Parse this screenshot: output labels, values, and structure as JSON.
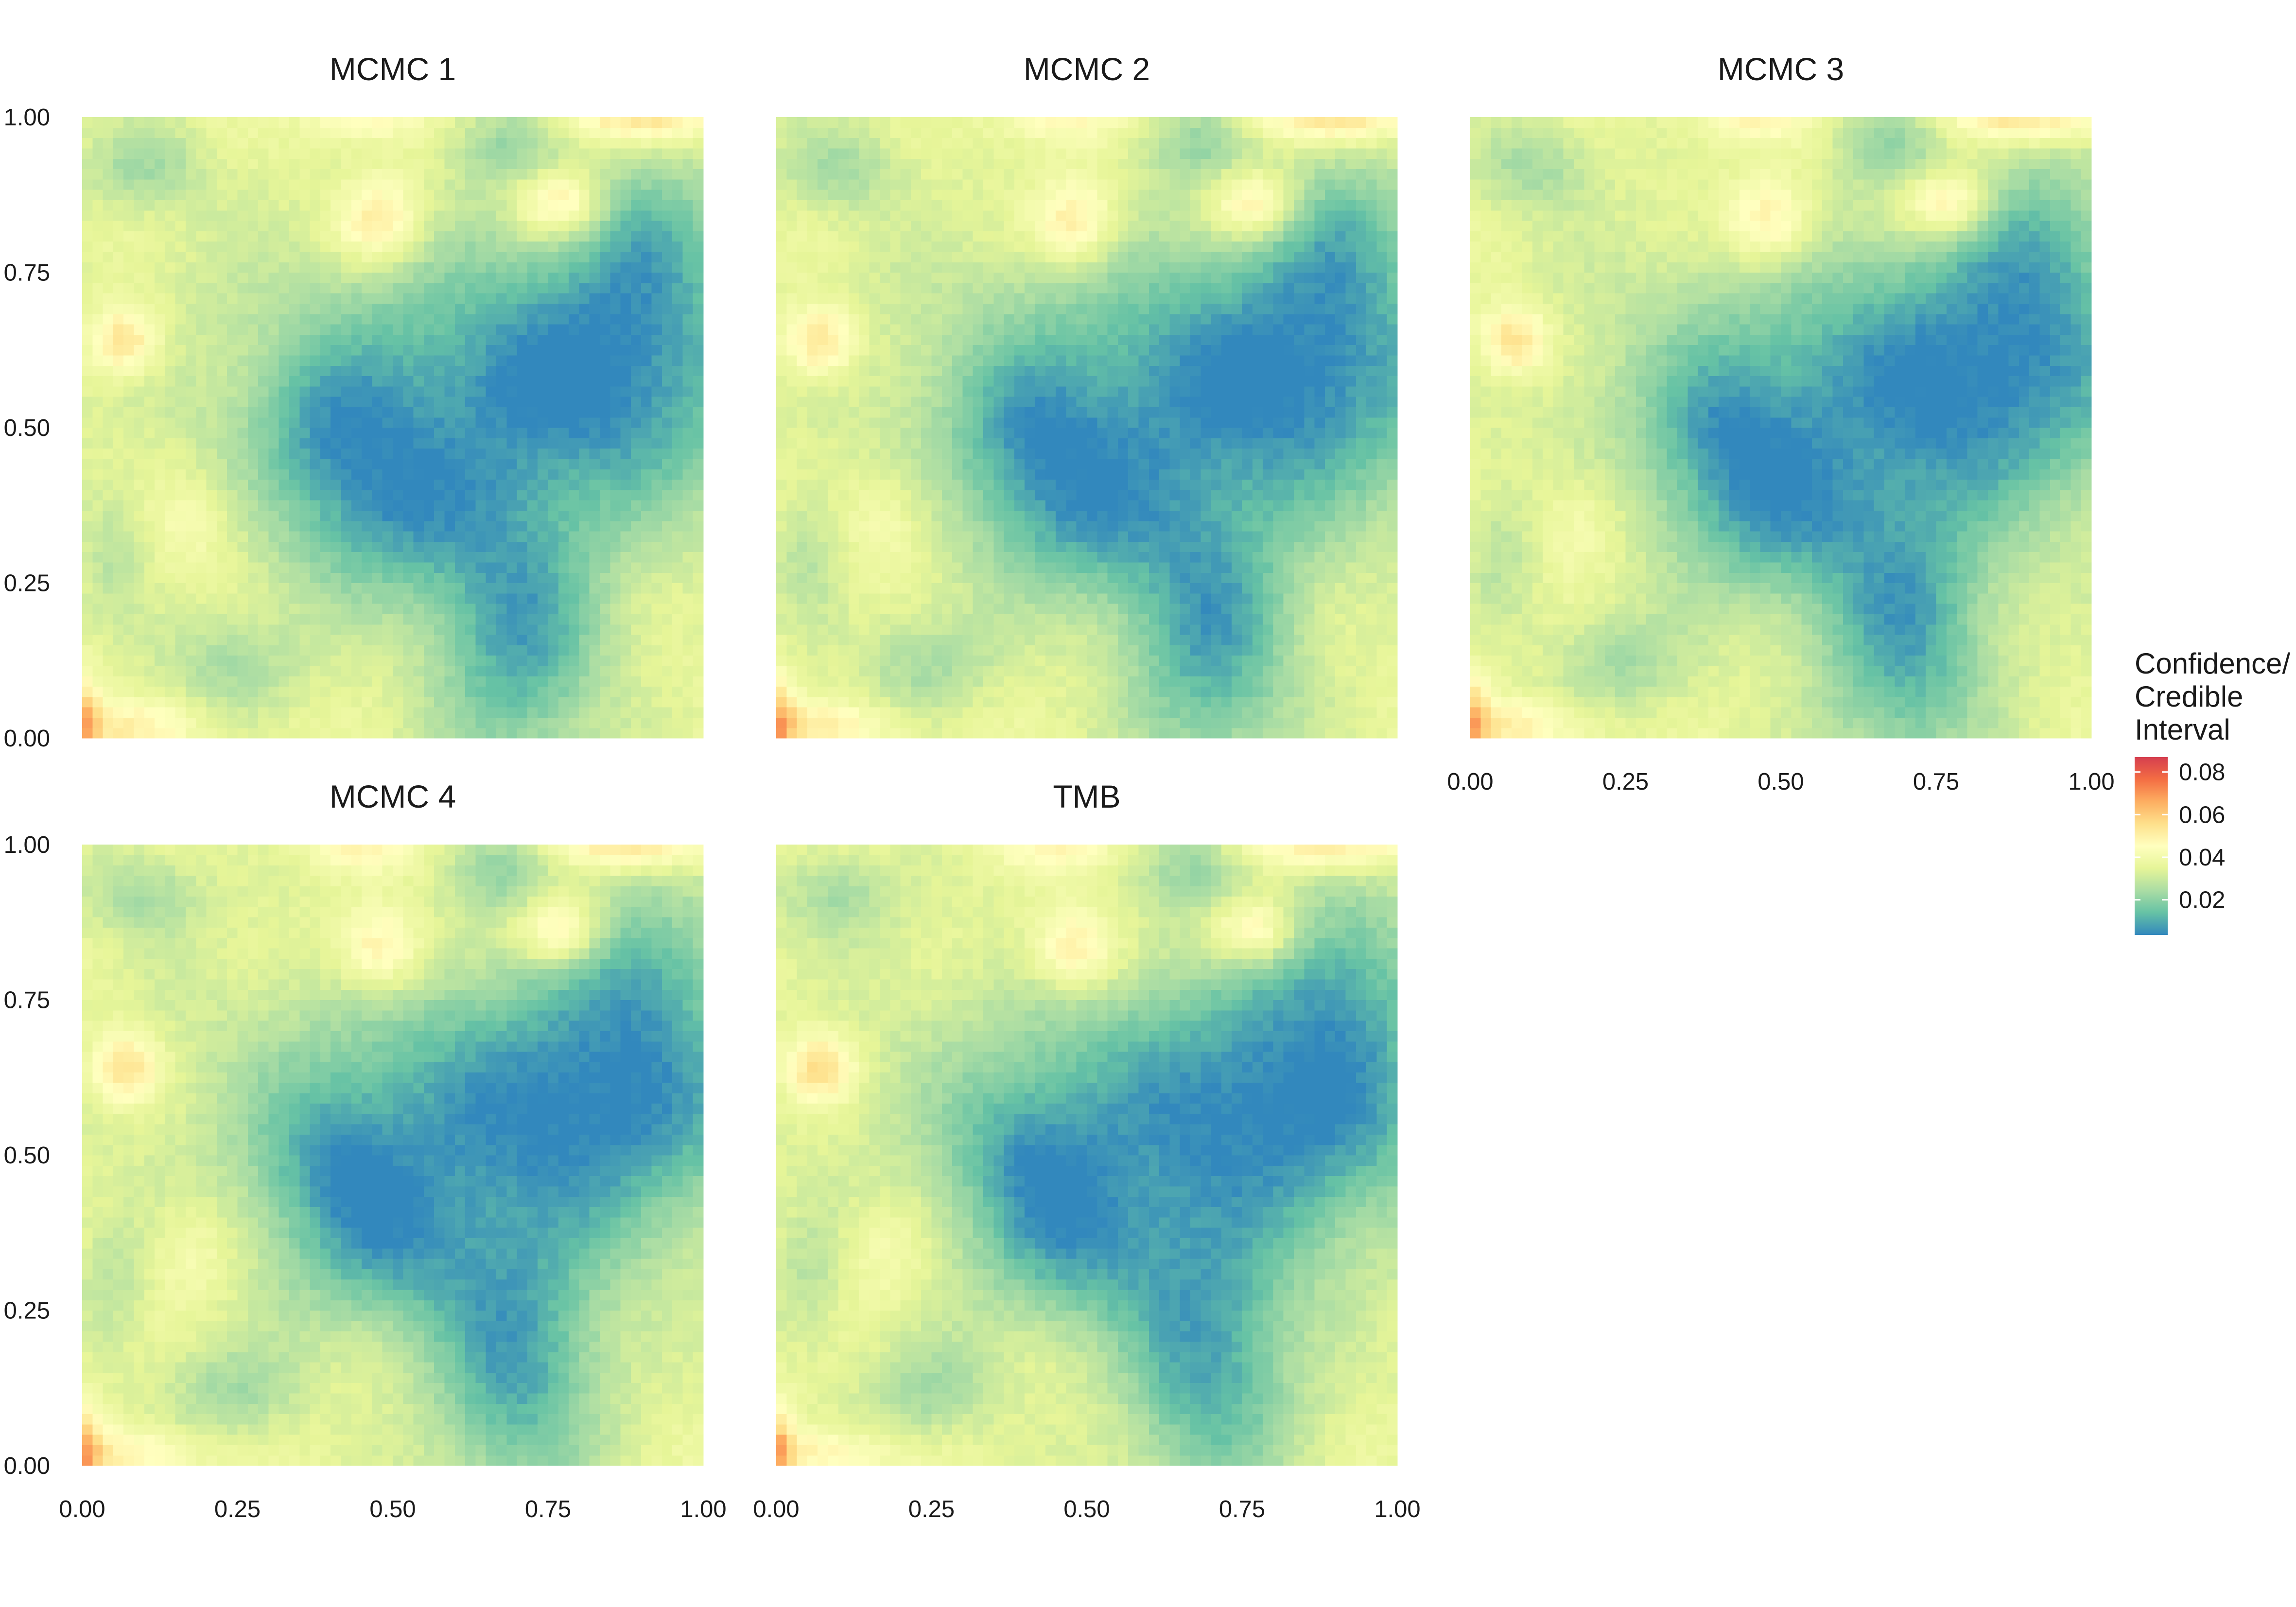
{
  "chart_data": {
    "type": "heatmap",
    "title": "",
    "xlabel": "",
    "ylabel": "",
    "xlim": [
      0,
      1
    ],
    "ylim": [
      0,
      1
    ],
    "grid": false,
    "legend_position": "right",
    "x_ticks": [
      "0.00",
      "0.25",
      "0.50",
      "0.75",
      "1.00"
    ],
    "y_ticks": [
      "0.00",
      "0.25",
      "0.50",
      "0.75",
      "1.00"
    ],
    "panels": [
      {
        "name": "MCMC 1",
        "variant": 0,
        "show_y_axis": true,
        "show_x_axis": false
      },
      {
        "name": "MCMC 2",
        "variant": 1,
        "show_y_axis": false,
        "show_x_axis": false
      },
      {
        "name": "MCMC 3",
        "variant": 2,
        "show_y_axis": false,
        "show_x_axis": true
      },
      {
        "name": "MCMC 4",
        "variant": 3,
        "show_y_axis": true,
        "show_x_axis": true
      },
      {
        "name": "TMB",
        "variant": 4,
        "show_y_axis": false,
        "show_x_axis": true
      }
    ],
    "field": {
      "grid_size": 60,
      "base_value": 0.036,
      "bumps": [
        {
          "x": 0.68,
          "y": 0.58,
          "sx": 0.3,
          "sy": 0.16,
          "amp": -0.026
        },
        {
          "x": 0.88,
          "y": 0.6,
          "sx": 0.14,
          "sy": 0.18,
          "amp": -0.012
        },
        {
          "x": 0.7,
          "y": 0.16,
          "sx": 0.1,
          "sy": 0.16,
          "amp": -0.026
        },
        {
          "x": 0.48,
          "y": 0.35,
          "sx": 0.12,
          "sy": 0.1,
          "amp": -0.02
        },
        {
          "x": 0.4,
          "y": 0.5,
          "sx": 0.08,
          "sy": 0.08,
          "amp": -0.012
        },
        {
          "x": 0.92,
          "y": 0.82,
          "sx": 0.09,
          "sy": 0.1,
          "amp": -0.012
        },
        {
          "x": 0.1,
          "y": 0.92,
          "sx": 0.07,
          "sy": 0.05,
          "amp": -0.012
        },
        {
          "x": 0.68,
          "y": 0.96,
          "sx": 0.06,
          "sy": 0.05,
          "amp": -0.012
        },
        {
          "x": 0.24,
          "y": 0.12,
          "sx": 0.08,
          "sy": 0.06,
          "amp": -0.012
        },
        {
          "x": 0.05,
          "y": 0.3,
          "sx": 0.04,
          "sy": 0.08,
          "amp": -0.008
        },
        {
          "x": 0.48,
          "y": 0.83,
          "sx": 0.05,
          "sy": 0.05,
          "amp": 0.02
        },
        {
          "x": 0.77,
          "y": 0.86,
          "sx": 0.05,
          "sy": 0.04,
          "amp": 0.022
        },
        {
          "x": 0.07,
          "y": 0.64,
          "sx": 0.04,
          "sy": 0.04,
          "amp": 0.022
        },
        {
          "x": 0.06,
          "y": 0.02,
          "sx": 0.1,
          "sy": 0.03,
          "amp": 0.014
        },
        {
          "x": 0.9,
          "y": 1.0,
          "sx": 0.1,
          "sy": 0.03,
          "amp": 0.02
        },
        {
          "x": 0.45,
          "y": 1.0,
          "sx": 0.07,
          "sy": 0.03,
          "amp": 0.012
        },
        {
          "x": 0.0,
          "y": 0.02,
          "sx": 0.02,
          "sy": 0.06,
          "amp": 0.022
        },
        {
          "x": 0.18,
          "y": 0.35,
          "sx": 0.05,
          "sy": 0.06,
          "amp": 0.008
        }
      ]
    }
  },
  "legend": {
    "title_lines": [
      "Confidence/",
      "Credible",
      "Interval"
    ],
    "ticks": [
      "0.08",
      "0.06",
      "0.04",
      "0.02"
    ],
    "tick_values": [
      0.08,
      0.06,
      0.04,
      0.02
    ],
    "min_value": 0.0035,
    "max_value": 0.087,
    "colors": [
      "#3288bd",
      "#66c2a5",
      "#abdda4",
      "#e6f598",
      "#ffffbf",
      "#fee08b",
      "#fdae61",
      "#f46d43",
      "#d53e4f"
    ]
  }
}
